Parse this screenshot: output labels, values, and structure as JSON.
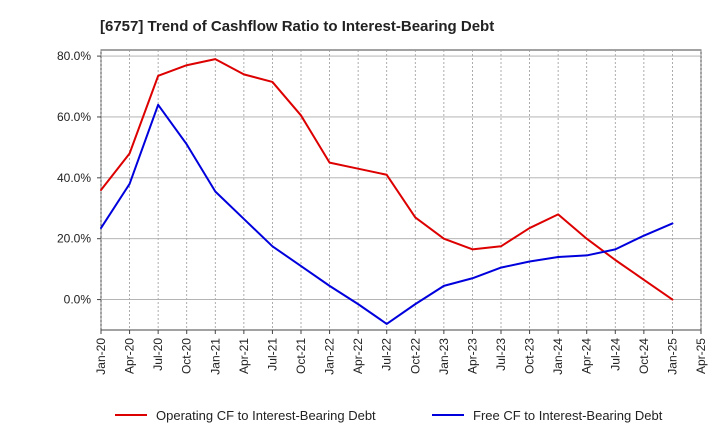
{
  "chart_data": {
    "type": "line",
    "title": "[6757]  Trend of Cashflow Ratio to Interest-Bearing Debt",
    "xlabel": "",
    "ylabel": "",
    "categories": [
      "Jan-20",
      "Apr-20",
      "Jul-20",
      "Oct-20",
      "Jan-21",
      "Apr-21",
      "Jul-21",
      "Oct-21",
      "Jan-22",
      "Apr-22",
      "Jul-22",
      "Oct-22",
      "Jan-23",
      "Apr-23",
      "Jul-23",
      "Oct-23",
      "Jan-24",
      "Apr-24",
      "Jul-24",
      "Oct-24",
      "Jan-25",
      "Apr-25"
    ],
    "ylim": [
      -10,
      82
    ],
    "yticks": [
      0,
      20,
      40,
      60,
      80
    ],
    "ytick_labels": [
      "0.0%",
      "20.0%",
      "40.0%",
      "60.0%",
      "80.0%"
    ],
    "grid": true,
    "legend_position": "bottom",
    "series": [
      {
        "name": "Operating CF to Interest-Bearing Debt",
        "color": "#dd0000",
        "values": [
          36,
          48,
          73.5,
          77,
          79,
          74,
          71.5,
          60.5,
          45,
          43,
          41,
          27,
          20,
          16.5,
          17.5,
          23.5,
          28,
          20,
          13,
          6.5,
          0,
          null
        ]
      },
      {
        "name": "Free CF to Interest-Bearing Debt",
        "color": "#0000dd",
        "values": [
          23.5,
          38,
          64,
          51,
          35.5,
          26.5,
          17.5,
          11,
          4.5,
          -1.5,
          -8,
          -1.5,
          4.5,
          7,
          10.5,
          12.5,
          14,
          14.5,
          16.5,
          21,
          25,
          null
        ]
      }
    ]
  }
}
